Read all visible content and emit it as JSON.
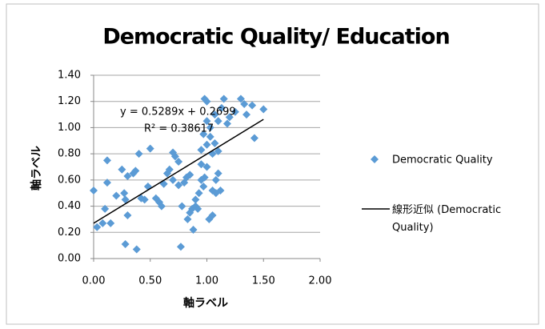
{
  "chart_data": {
    "type": "scatter",
    "title": "Democratic Quality/ Education",
    "xlabel": "軸ラベル",
    "ylabel": "軸ラベル",
    "xlim": [
      0,
      2
    ],
    "ylim": [
      0,
      1.4
    ],
    "xticks": [
      {
        "value": 0,
        "label": "0.00"
      },
      {
        "value": 0.5,
        "label": "0.50"
      },
      {
        "value": 1,
        "label": "1.00"
      },
      {
        "value": 1.5,
        "label": "1.50"
      },
      {
        "value": 2,
        "label": "2.00"
      }
    ],
    "yticks": [
      {
        "value": 0,
        "label": "0.00"
      },
      {
        "value": 0.2,
        "label": "0.20"
      },
      {
        "value": 0.4,
        "label": "0.40"
      },
      {
        "value": 0.6,
        "label": "0.60"
      },
      {
        "value": 0.8,
        "label": "0.80"
      },
      {
        "value": 1,
        "label": "1.00"
      },
      {
        "value": 1.2,
        "label": "1.20"
      },
      {
        "value": 1.4,
        "label": "1.40"
      }
    ],
    "grid": true,
    "legend": "right",
    "series": [
      {
        "name": "Democratic Quality",
        "color": "#5b9bd5",
        "x": [
          0.0,
          0.03,
          0.08,
          0.1,
          0.12,
          0.12,
          0.15,
          0.2,
          0.25,
          0.27,
          0.28,
          0.28,
          0.3,
          0.3,
          0.35,
          0.37,
          0.38,
          0.4,
          0.42,
          0.45,
          0.48,
          0.5,
          0.55,
          0.58,
          0.6,
          0.62,
          0.65,
          0.67,
          0.7,
          0.7,
          0.72,
          0.75,
          0.75,
          0.77,
          0.78,
          0.8,
          0.82,
          0.83,
          0.85,
          0.85,
          0.87,
          0.88,
          0.9,
          0.9,
          0.92,
          0.93,
          0.95,
          0.95,
          0.95,
          0.97,
          0.97,
          0.98,
          1.0,
          1.0,
          1.0,
          1.0,
          1.02,
          1.03,
          1.05,
          1.05,
          1.05,
          1.07,
          1.07,
          1.08,
          1.08,
          1.1,
          1.1,
          1.1,
          1.12,
          1.13,
          1.15,
          1.18,
          1.2,
          1.25,
          1.3,
          1.33,
          1.35,
          1.4,
          1.42,
          1.5,
          1.03,
          0.98
        ],
        "values": [
          0.52,
          0.24,
          0.27,
          0.38,
          0.75,
          0.58,
          0.27,
          0.48,
          0.68,
          0.5,
          0.11,
          0.45,
          0.33,
          0.63,
          0.65,
          0.67,
          0.07,
          0.8,
          0.46,
          0.45,
          0.55,
          0.84,
          0.46,
          0.43,
          0.4,
          0.57,
          0.65,
          0.68,
          0.6,
          0.81,
          0.78,
          0.56,
          0.74,
          0.09,
          0.4,
          0.58,
          0.62,
          0.3,
          0.64,
          0.35,
          0.38,
          0.22,
          0.45,
          0.4,
          0.38,
          0.5,
          0.83,
          0.72,
          0.6,
          0.95,
          0.55,
          0.62,
          1.2,
          1.05,
          0.87,
          0.7,
          0.3,
          0.93,
          0.33,
          0.52,
          0.8,
          0.88,
          1.1,
          0.6,
          0.5,
          1.05,
          0.65,
          0.82,
          0.52,
          1.15,
          1.22,
          1.03,
          1.08,
          1.12,
          1.22,
          1.18,
          1.1,
          1.17,
          0.92,
          1.14,
          1.0,
          1.22
        ]
      }
    ],
    "trendline": {
      "name": "線形近似 (Democratic Quality)",
      "color": "#000000",
      "slope": 0.5289,
      "intercept": 0.2699,
      "xlim": [
        0,
        1.5
      ],
      "equation": "y = 0.5289x + 0.2699",
      "r2": 0.38617,
      "r2_label": "R² = 0.38617"
    }
  }
}
